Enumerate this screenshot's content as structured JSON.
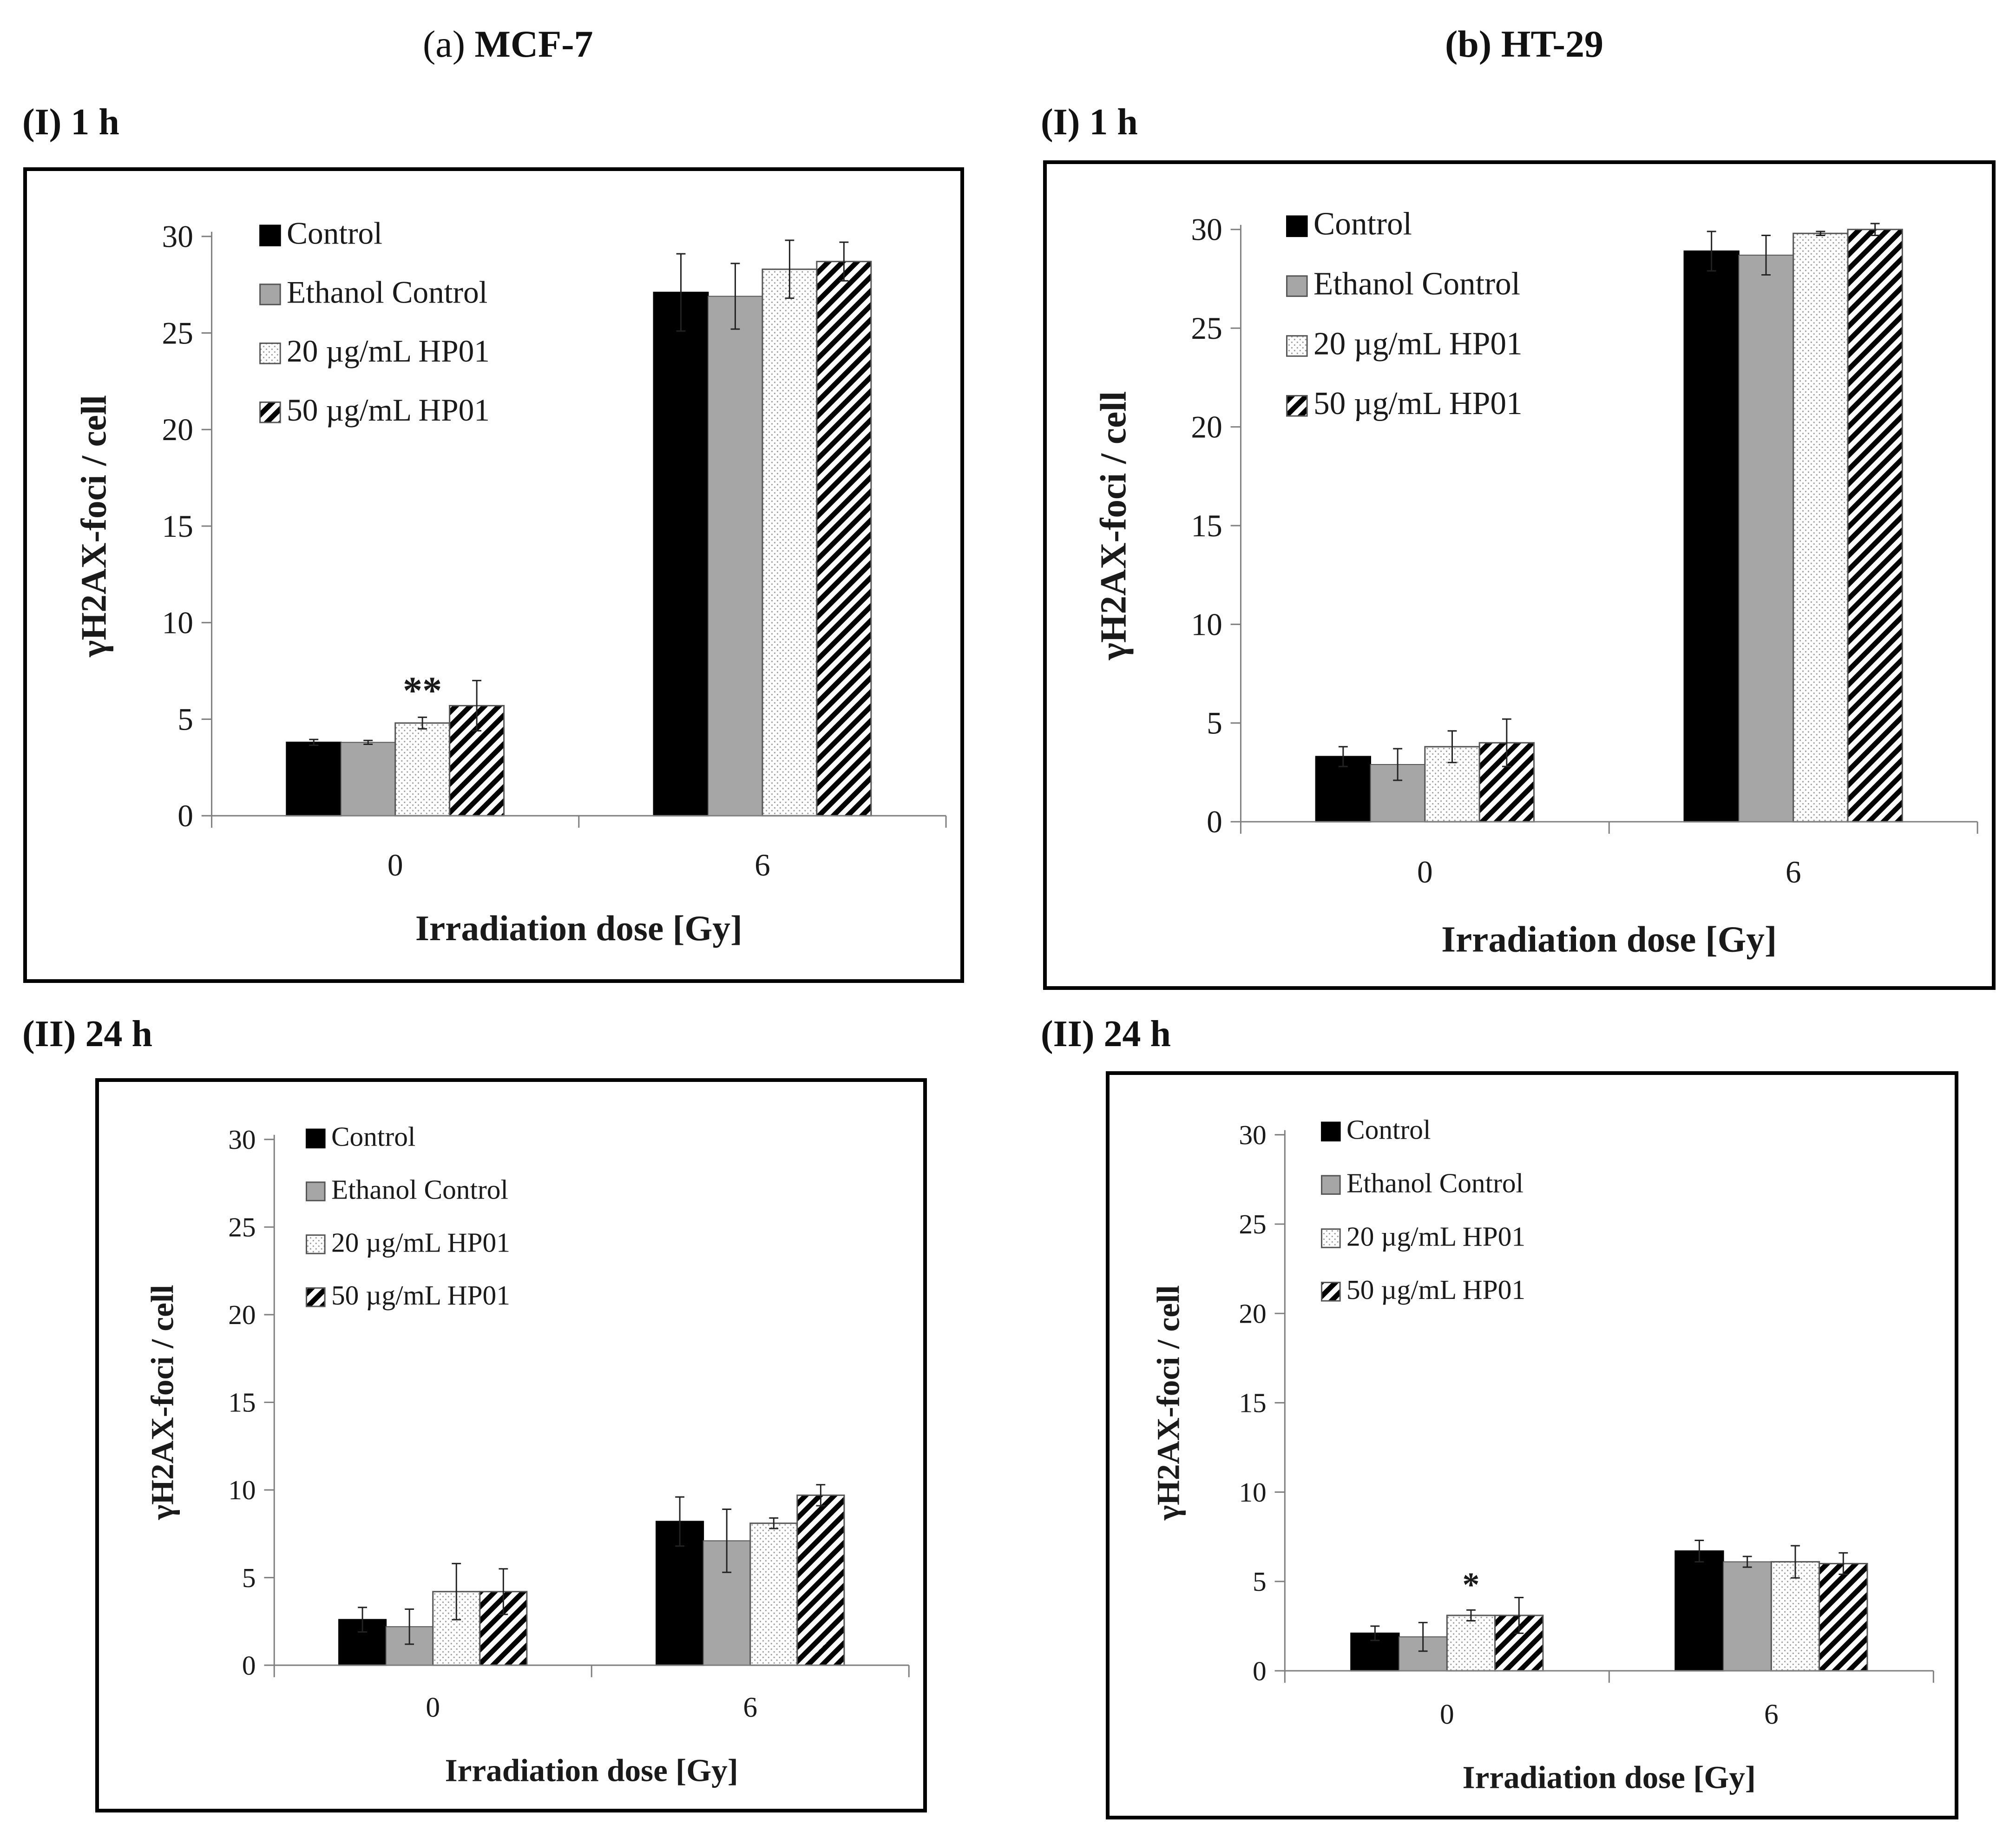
{
  "columns": [
    {
      "label": "(a)",
      "name": "MCF-7"
    },
    {
      "label": "(b)",
      "name": "HT-29"
    }
  ],
  "panels": [
    {
      "label": "(I) 1 h"
    },
    {
      "label": "(I) 1 h"
    },
    {
      "label": "(II) 24 h"
    },
    {
      "label": "(II) 24 h"
    }
  ],
  "colors": {
    "control": "#000000",
    "ethanol_control": "#a6a6a6",
    "dotted": "#ffffff",
    "striped": "#000000",
    "axis": "#7f7f7f"
  },
  "chart_data": [
    {
      "type": "bar",
      "categories": [
        "0",
        "6"
      ],
      "xlabel": "Irradiation dose [Gy]",
      "ylabel": "γH2AX-foci / cell",
      "ylim": [
        0,
        30
      ],
      "yticks": [
        "0",
        "5",
        "10",
        "15",
        "20",
        "25",
        "30"
      ],
      "legend_position": "top-left",
      "series": [
        {
          "name": "Control",
          "values": [
            3.8,
            27.1
          ],
          "errors": [
            0.15,
            2.0
          ]
        },
        {
          "name": "Ethanol Control",
          "values": [
            3.8,
            26.9
          ],
          "errors": [
            0.1,
            1.7
          ]
        },
        {
          "name": "20 µg/mL HP01",
          "values": [
            4.8,
            28.3
          ],
          "errors": [
            0.3,
            1.5
          ]
        },
        {
          "name": "50 µg/mL HP01",
          "values": [
            5.7,
            28.7
          ],
          "errors": [
            1.3,
            1.0
          ]
        }
      ],
      "annotations": [
        {
          "text": "**",
          "category": 0,
          "series": 2
        }
      ]
    },
    {
      "type": "bar",
      "categories": [
        "0",
        "6"
      ],
      "xlabel": "Irradiation dose [Gy]",
      "ylabel": "γH2AX-foci / cell",
      "ylim": [
        0,
        30
      ],
      "yticks": [
        "0",
        "5",
        "10",
        "15",
        "20",
        "25",
        "30"
      ],
      "legend_position": "top-left",
      "series": [
        {
          "name": "Control",
          "values": [
            3.3,
            28.9
          ],
          "errors": [
            0.5,
            1.0
          ]
        },
        {
          "name": "Ethanol Control",
          "values": [
            2.9,
            28.7
          ],
          "errors": [
            0.8,
            1.0
          ]
        },
        {
          "name": "20 µg/mL HP01",
          "values": [
            3.8,
            29.8
          ],
          "errors": [
            0.8,
            0.1
          ]
        },
        {
          "name": "50 µg/mL HP01",
          "values": [
            4.0,
            30.0
          ],
          "errors": [
            1.2,
            0.3
          ]
        }
      ],
      "annotations": []
    },
    {
      "type": "bar",
      "categories": [
        "0",
        "6"
      ],
      "xlabel": "Irradiation dose [Gy]",
      "ylabel": "γH2AX-foci / cell",
      "ylim": [
        0,
        30
      ],
      "yticks": [
        "0",
        "5",
        "10",
        "15",
        "20",
        "25",
        "30"
      ],
      "legend_position": "top-left",
      "series": [
        {
          "name": "Control",
          "values": [
            2.6,
            8.2
          ],
          "errors": [
            0.7,
            1.4
          ]
        },
        {
          "name": "Ethanol Control",
          "values": [
            2.2,
            7.1
          ],
          "errors": [
            1.0,
            1.8
          ]
        },
        {
          "name": "20 µg/mL HP01",
          "values": [
            4.2,
            8.1
          ],
          "errors": [
            1.6,
            0.3
          ]
        },
        {
          "name": "50 µg/mL HP01",
          "values": [
            4.2,
            9.7
          ],
          "errors": [
            1.3,
            0.6
          ]
        }
      ],
      "annotations": []
    },
    {
      "type": "bar",
      "categories": [
        "0",
        "6"
      ],
      "xlabel": "Irradiation dose [Gy]",
      "ylabel": "γH2AX-foci / cell",
      "ylim": [
        0,
        30
      ],
      "yticks": [
        "0",
        "5",
        "10",
        "15",
        "20",
        "25",
        "30"
      ],
      "legend_position": "top-left",
      "series": [
        {
          "name": "Control",
          "values": [
            2.1,
            6.7
          ],
          "errors": [
            0.4,
            0.6
          ]
        },
        {
          "name": "Ethanol Control",
          "values": [
            1.9,
            6.1
          ],
          "errors": [
            0.8,
            0.3
          ]
        },
        {
          "name": "20 µg/mL HP01",
          "values": [
            3.1,
            6.1
          ],
          "errors": [
            0.3,
            0.9
          ]
        },
        {
          "name": "50 µg/mL HP01",
          "values": [
            3.1,
            6.0
          ],
          "errors": [
            1.0,
            0.6
          ]
        }
      ],
      "annotations": [
        {
          "text": "*",
          "category": 0,
          "series": 2
        }
      ]
    }
  ]
}
